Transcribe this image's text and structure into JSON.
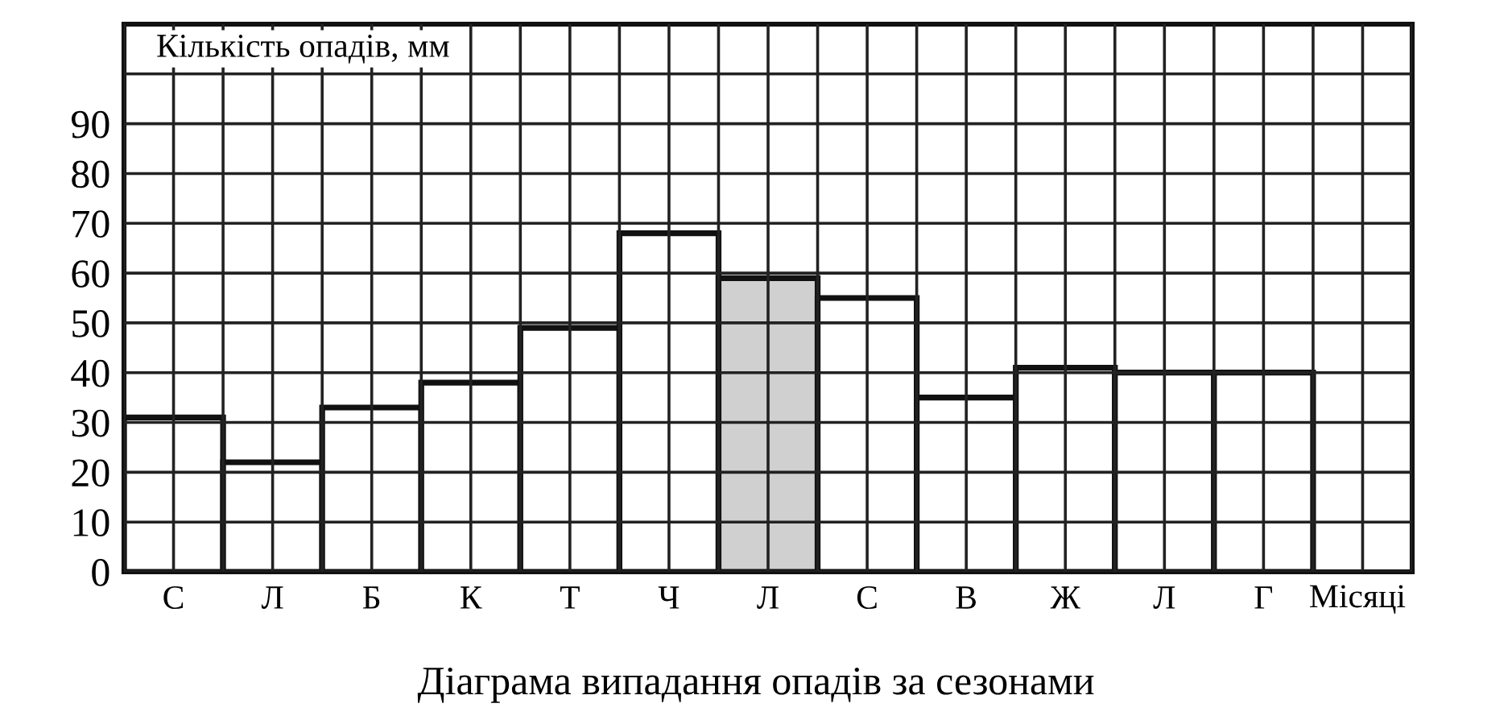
{
  "chart_data": {
    "type": "bar",
    "title": "Діаграма випадання опадів за сезонами",
    "xlabel": "Місяці",
    "ylabel": "Кількість опадів, мм",
    "categories": [
      "С",
      "Л",
      "Б",
      "К",
      "Т",
      "Ч",
      "Л",
      "С",
      "В",
      "Ж",
      "Л",
      "Г"
    ],
    "values": [
      31,
      22,
      33,
      38,
      49,
      68,
      59,
      55,
      35,
      41,
      40,
      40
    ],
    "colors": [
      "#ffffff",
      "#ffffff",
      "#ffffff",
      "#ffffff",
      "#ffffff",
      "#ffffff",
      "#d0d0d0",
      "#ffffff",
      "#ffffff",
      "#ffffff",
      "#ffffff",
      "#ffffff"
    ],
    "ylim": [
      0,
      110
    ],
    "yticks": [
      0,
      10,
      20,
      30,
      40,
      50,
      60,
      70,
      80,
      90,
      {
        "value": 100,
        "label": null
      }
    ],
    "grid": true
  }
}
